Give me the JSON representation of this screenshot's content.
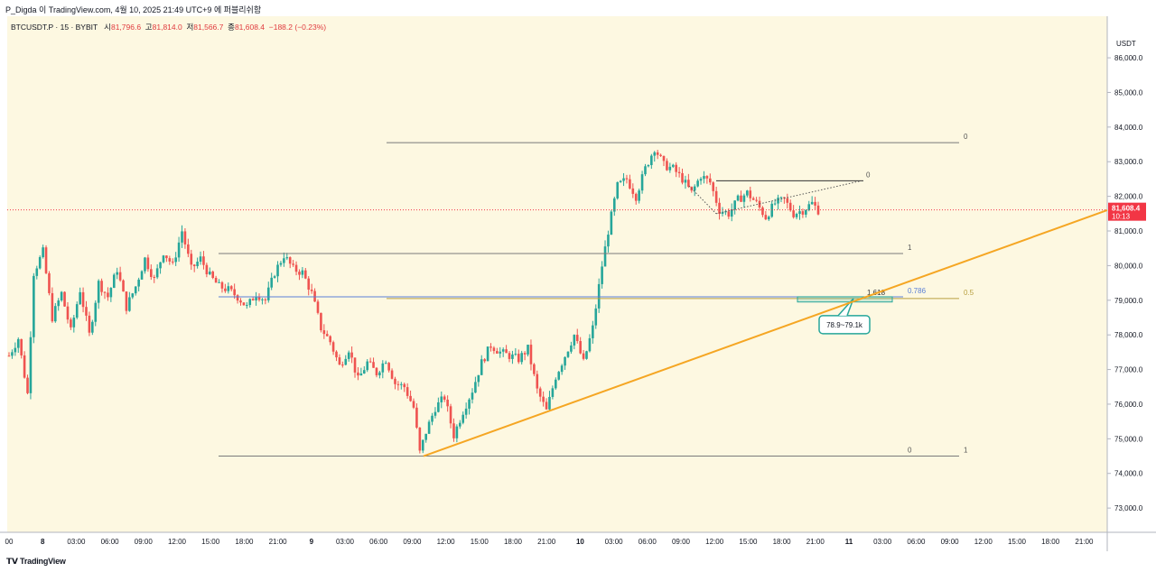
{
  "header": {
    "title": "P_Digda 이 TradingView.com, 4월 10, 2025 21:49 UTC+9 에 퍼블리쉬함"
  },
  "legend": {
    "symbol": "BTCUSDT.P · 15 · BYBIT",
    "open_label": "시",
    "open": "81,796.6",
    "high_label": "고",
    "high": "81,814.0",
    "low_label": "저",
    "low": "81,566.7",
    "close_label": "종",
    "close": "81,608.4",
    "change": "−188.2 (−0.23%)"
  },
  "price_axis": {
    "unit": "USDT"
  },
  "footer": {
    "brand": "TradingView"
  },
  "colors": {
    "background": "#fdf8e1",
    "up": "#26a69a",
    "down": "#ef5350",
    "trendline": "#f5a623",
    "fib_line": "#7a7a7a",
    "fib_blue": "#5a7fd6",
    "last_price": "#f23645"
  },
  "chart_data": {
    "type": "candlestick",
    "interval": "15",
    "ylim": [
      72300,
      87200
    ],
    "y_ticks": [
      73000,
      74000,
      75000,
      76000,
      77000,
      78000,
      79000,
      80000,
      81000,
      82000,
      83000,
      84000,
      85000,
      86000
    ],
    "y_tick_labels": [
      "73,000.0",
      "74,000.0",
      "75,000.0",
      "76,000.0",
      "77,000.0",
      "78,000.0",
      "79,000.0",
      "80,000.0",
      "81,000.0",
      "82,000.0",
      "83,000.0",
      "84,000.0",
      "85,000.0",
      "86,000.0"
    ],
    "x_ticks": [
      "00",
      "8",
      "03:00",
      "06:00",
      "09:00",
      "12:00",
      "15:00",
      "18:00",
      "21:00",
      "9",
      "03:00",
      "06:00",
      "09:00",
      "12:00",
      "15:00",
      "18:00",
      "21:00",
      "10",
      "03:00",
      "06:00",
      "09:00",
      "12:00",
      "15:00",
      "18:00",
      "21:00",
      "11",
      "03:00",
      "06:00",
      "09:00",
      "12:00",
      "15:00",
      "18:00",
      "21:00"
    ],
    "last_price": {
      "value": "81,608.4",
      "countdown": "10:13"
    },
    "price_path": [
      [
        0,
        77400
      ],
      [
        3,
        77900
      ],
      [
        6,
        76300
      ],
      [
        8,
        79800
      ],
      [
        11,
        80400
      ],
      [
        14,
        78500
      ],
      [
        17,
        79200
      ],
      [
        20,
        78100
      ],
      [
        23,
        79300
      ],
      [
        26,
        78000
      ],
      [
        29,
        79500
      ],
      [
        32,
        79100
      ],
      [
        35,
        79900
      ],
      [
        38,
        78800
      ],
      [
        41,
        79400
      ],
      [
        44,
        80200
      ],
      [
        47,
        79600
      ],
      [
        50,
        80400
      ],
      [
        53,
        80000
      ],
      [
        56,
        81000
      ],
      [
        59,
        79900
      ],
      [
        62,
        80200
      ],
      [
        65,
        79700
      ],
      [
        68,
        79400
      ],
      [
        71,
        79300
      ],
      [
        74,
        79100
      ],
      [
        77,
        78800
      ],
      [
        80,
        79200
      ],
      [
        83,
        79000
      ],
      [
        86,
        79800
      ],
      [
        89,
        80300
      ],
      [
        92,
        79900
      ],
      [
        95,
        79800
      ],
      [
        98,
        79200
      ],
      [
        101,
        78200
      ],
      [
        104,
        77800
      ],
      [
        107,
        77100
      ],
      [
        110,
        77600
      ],
      [
        113,
        76700
      ],
      [
        116,
        77200
      ],
      [
        119,
        76900
      ],
      [
        122,
        77300
      ],
      [
        125,
        76600
      ],
      [
        128,
        76500
      ],
      [
        131,
        75900
      ],
      [
        133,
        74600
      ],
      [
        135,
        75200
      ],
      [
        138,
        75900
      ],
      [
        141,
        76200
      ],
      [
        144,
        75100
      ],
      [
        147,
        75800
      ],
      [
        150,
        76400
      ],
      [
        153,
        77200
      ],
      [
        156,
        77700
      ],
      [
        159,
        77500
      ],
      [
        162,
        77400
      ],
      [
        165,
        77300
      ],
      [
        168,
        77600
      ],
      [
        171,
        76400
      ],
      [
        174,
        75800
      ],
      [
        177,
        76800
      ],
      [
        180,
        77400
      ],
      [
        183,
        78000
      ],
      [
        186,
        77200
      ],
      [
        189,
        78200
      ],
      [
        192,
        80000
      ],
      [
        194,
        81000
      ],
      [
        197,
        82300
      ],
      [
        200,
        82500
      ],
      [
        203,
        82000
      ],
      [
        206,
        82800
      ],
      [
        209,
        83400
      ],
      [
        212,
        82900
      ],
      [
        215,
        82800
      ],
      [
        218,
        82500
      ],
      [
        221,
        82100
      ],
      [
        224,
        82600
      ],
      [
        227,
        82400
      ],
      [
        230,
        81600
      ],
      [
        233,
        81500
      ],
      [
        236,
        81900
      ],
      [
        239,
        82100
      ],
      [
        242,
        81800
      ],
      [
        245,
        81400
      ],
      [
        248,
        81800
      ],
      [
        251,
        81900
      ],
      [
        254,
        81500
      ],
      [
        257,
        81600
      ],
      [
        260,
        81800
      ],
      [
        262,
        81600
      ]
    ],
    "annotations": [
      {
        "kind": "hline",
        "price": 83550,
        "label": "0"
      },
      {
        "kind": "hline",
        "price": 82450,
        "label": "0"
      },
      {
        "kind": "hline",
        "price": 80350,
        "label": "1"
      },
      {
        "kind": "hline",
        "price": 79100,
        "label": "0.786"
      },
      {
        "kind": "hline",
        "price": 79050,
        "label": "0.5"
      },
      {
        "kind": "hline",
        "price": 74500,
        "label": "0"
      },
      {
        "kind": "hline",
        "price": 74500,
        "label": "1"
      },
      {
        "kind": "box",
        "price_low": 78950,
        "price_high": 79100,
        "label": "1.618"
      },
      {
        "kind": "callout",
        "label": "78.9~79.1k"
      },
      {
        "kind": "trendline",
        "from_price": 74500,
        "to_price": 81600
      }
    ]
  }
}
